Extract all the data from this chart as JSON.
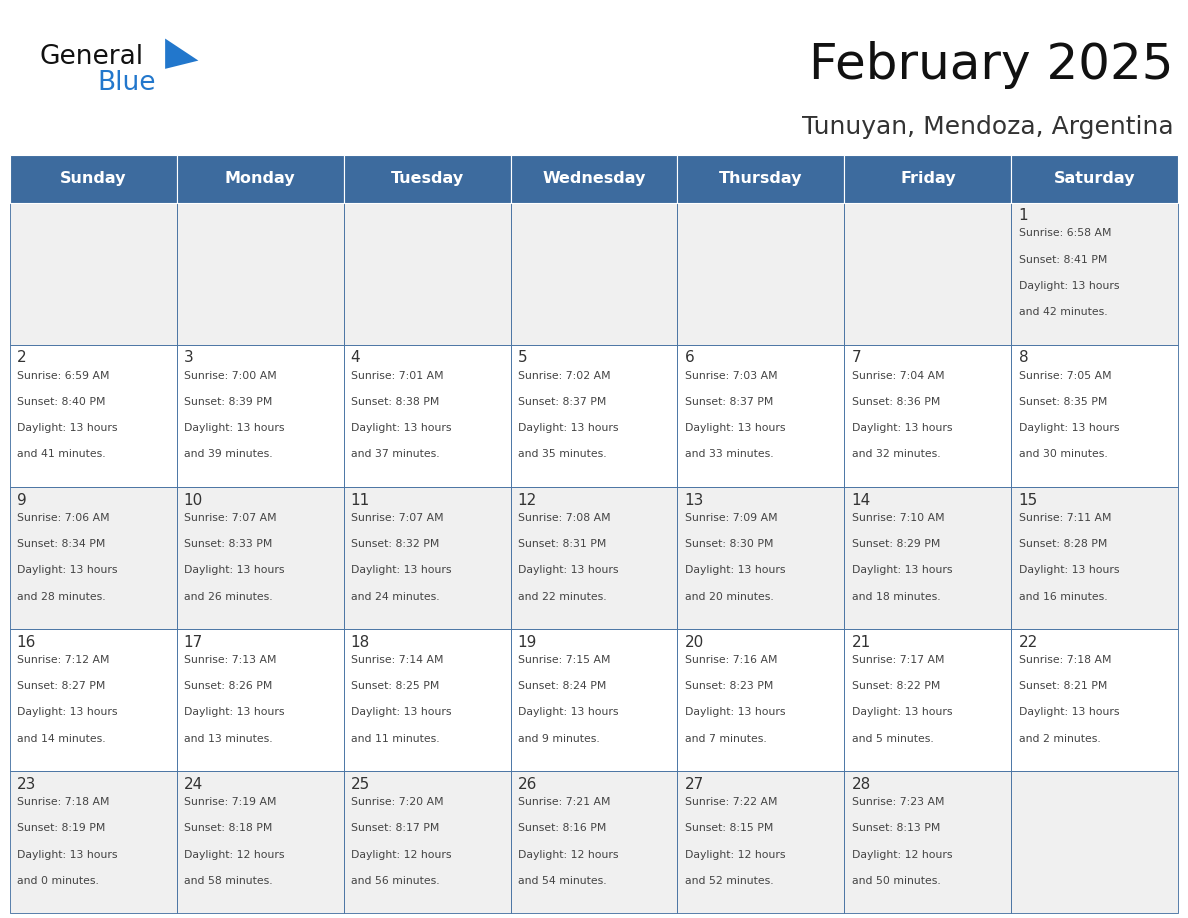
{
  "title": "February 2025",
  "subtitle": "Tunuyan, Mendoza, Argentina",
  "days_of_week": [
    "Sunday",
    "Monday",
    "Tuesday",
    "Wednesday",
    "Thursday",
    "Friday",
    "Saturday"
  ],
  "header_bg": "#3d6b9e",
  "header_text": "#ffffff",
  "cell_bg_odd": "#f0f0f0",
  "cell_bg_even": "#ffffff",
  "border_color": "#3d6b9e",
  "day_num_color": "#333333",
  "cell_text_color": "#444444",
  "title_color": "#111111",
  "subtitle_color": "#333333",
  "logo_general_color": "#111111",
  "logo_blue_color": "#2277cc",
  "calendar_data": [
    [
      null,
      null,
      null,
      null,
      null,
      null,
      {
        "day": 1,
        "sunrise": "6:58 AM",
        "sunset": "8:41 PM",
        "daylight_line1": "13 hours",
        "daylight_line2": "and 42 minutes."
      }
    ],
    [
      {
        "day": 2,
        "sunrise": "6:59 AM",
        "sunset": "8:40 PM",
        "daylight_line1": "13 hours",
        "daylight_line2": "and 41 minutes."
      },
      {
        "day": 3,
        "sunrise": "7:00 AM",
        "sunset": "8:39 PM",
        "daylight_line1": "13 hours",
        "daylight_line2": "and 39 minutes."
      },
      {
        "day": 4,
        "sunrise": "7:01 AM",
        "sunset": "8:38 PM",
        "daylight_line1": "13 hours",
        "daylight_line2": "and 37 minutes."
      },
      {
        "day": 5,
        "sunrise": "7:02 AM",
        "sunset": "8:37 PM",
        "daylight_line1": "13 hours",
        "daylight_line2": "and 35 minutes."
      },
      {
        "day": 6,
        "sunrise": "7:03 AM",
        "sunset": "8:37 PM",
        "daylight_line1": "13 hours",
        "daylight_line2": "and 33 minutes."
      },
      {
        "day": 7,
        "sunrise": "7:04 AM",
        "sunset": "8:36 PM",
        "daylight_line1": "13 hours",
        "daylight_line2": "and 32 minutes."
      },
      {
        "day": 8,
        "sunrise": "7:05 AM",
        "sunset": "8:35 PM",
        "daylight_line1": "13 hours",
        "daylight_line2": "and 30 minutes."
      }
    ],
    [
      {
        "day": 9,
        "sunrise": "7:06 AM",
        "sunset": "8:34 PM",
        "daylight_line1": "13 hours",
        "daylight_line2": "and 28 minutes."
      },
      {
        "day": 10,
        "sunrise": "7:07 AM",
        "sunset": "8:33 PM",
        "daylight_line1": "13 hours",
        "daylight_line2": "and 26 minutes."
      },
      {
        "day": 11,
        "sunrise": "7:07 AM",
        "sunset": "8:32 PM",
        "daylight_line1": "13 hours",
        "daylight_line2": "and 24 minutes."
      },
      {
        "day": 12,
        "sunrise": "7:08 AM",
        "sunset": "8:31 PM",
        "daylight_line1": "13 hours",
        "daylight_line2": "and 22 minutes."
      },
      {
        "day": 13,
        "sunrise": "7:09 AM",
        "sunset": "8:30 PM",
        "daylight_line1": "13 hours",
        "daylight_line2": "and 20 minutes."
      },
      {
        "day": 14,
        "sunrise": "7:10 AM",
        "sunset": "8:29 PM",
        "daylight_line1": "13 hours",
        "daylight_line2": "and 18 minutes."
      },
      {
        "day": 15,
        "sunrise": "7:11 AM",
        "sunset": "8:28 PM",
        "daylight_line1": "13 hours",
        "daylight_line2": "and 16 minutes."
      }
    ],
    [
      {
        "day": 16,
        "sunrise": "7:12 AM",
        "sunset": "8:27 PM",
        "daylight_line1": "13 hours",
        "daylight_line2": "and 14 minutes."
      },
      {
        "day": 17,
        "sunrise": "7:13 AM",
        "sunset": "8:26 PM",
        "daylight_line1": "13 hours",
        "daylight_line2": "and 13 minutes."
      },
      {
        "day": 18,
        "sunrise": "7:14 AM",
        "sunset": "8:25 PM",
        "daylight_line1": "13 hours",
        "daylight_line2": "and 11 minutes."
      },
      {
        "day": 19,
        "sunrise": "7:15 AM",
        "sunset": "8:24 PM",
        "daylight_line1": "13 hours",
        "daylight_line2": "and 9 minutes."
      },
      {
        "day": 20,
        "sunrise": "7:16 AM",
        "sunset": "8:23 PM",
        "daylight_line1": "13 hours",
        "daylight_line2": "and 7 minutes."
      },
      {
        "day": 21,
        "sunrise": "7:17 AM",
        "sunset": "8:22 PM",
        "daylight_line1": "13 hours",
        "daylight_line2": "and 5 minutes."
      },
      {
        "day": 22,
        "sunrise": "7:18 AM",
        "sunset": "8:21 PM",
        "daylight_line1": "13 hours",
        "daylight_line2": "and 2 minutes."
      }
    ],
    [
      {
        "day": 23,
        "sunrise": "7:18 AM",
        "sunset": "8:19 PM",
        "daylight_line1": "13 hours",
        "daylight_line2": "and 0 minutes."
      },
      {
        "day": 24,
        "sunrise": "7:19 AM",
        "sunset": "8:18 PM",
        "daylight_line1": "12 hours",
        "daylight_line2": "and 58 minutes."
      },
      {
        "day": 25,
        "sunrise": "7:20 AM",
        "sunset": "8:17 PM",
        "daylight_line1": "12 hours",
        "daylight_line2": "and 56 minutes."
      },
      {
        "day": 26,
        "sunrise": "7:21 AM",
        "sunset": "8:16 PM",
        "daylight_line1": "12 hours",
        "daylight_line2": "and 54 minutes."
      },
      {
        "day": 27,
        "sunrise": "7:22 AM",
        "sunset": "8:15 PM",
        "daylight_line1": "12 hours",
        "daylight_line2": "and 52 minutes."
      },
      {
        "day": 28,
        "sunrise": "7:23 AM",
        "sunset": "8:13 PM",
        "daylight_line1": "12 hours",
        "daylight_line2": "and 50 minutes."
      },
      null
    ]
  ],
  "figsize": [
    11.88,
    9.18
  ],
  "dpi": 100
}
